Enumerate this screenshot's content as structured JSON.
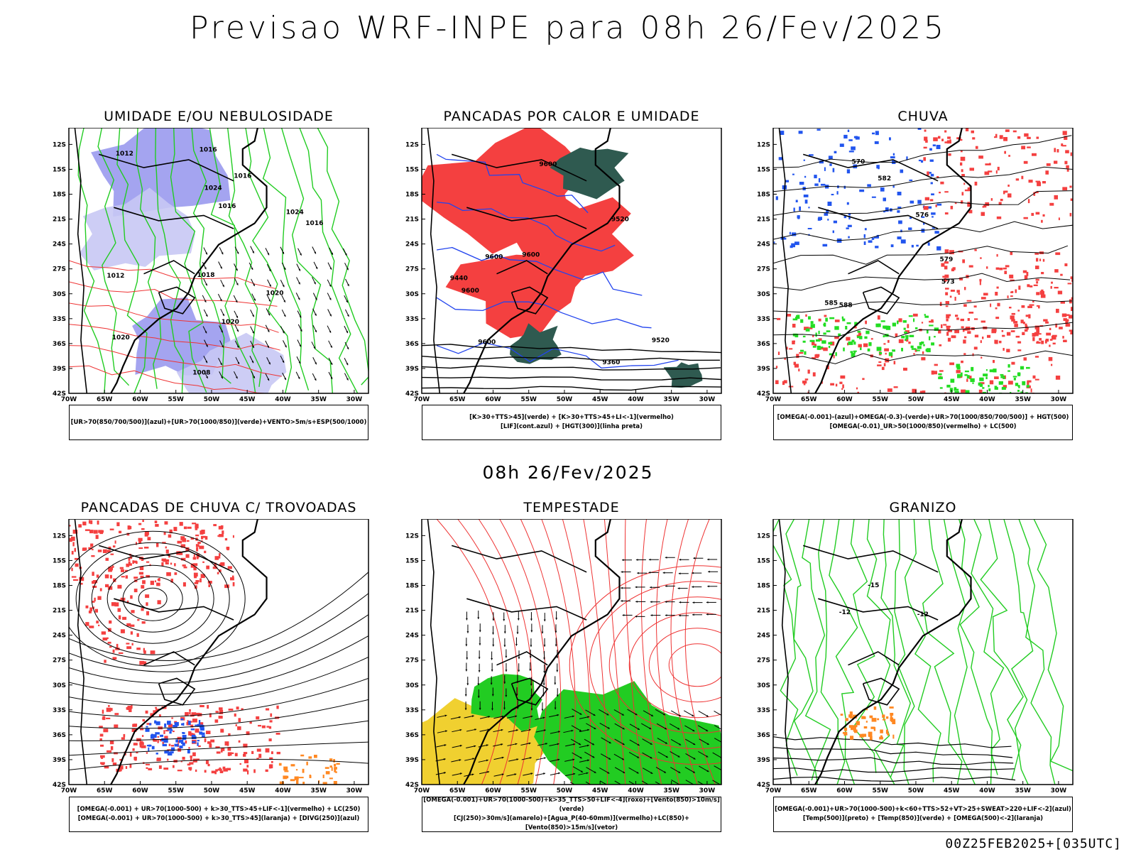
{
  "header": {
    "title": "Previsao WRF-INPE  para 08h 26/Fev/2025"
  },
  "middle": {
    "title": "08h 26/Fev/2025"
  },
  "footer": {
    "run_label": "00Z25FEB2025+[035UTC]"
  },
  "chart_data": {
    "type": "map",
    "x_ticks": [
      "70W",
      "65W",
      "60W",
      "55W",
      "50W",
      "45W",
      "40W",
      "35W",
      "30W"
    ],
    "y_ticks": [
      "12S",
      "15S",
      "18S",
      "21S",
      "24S",
      "27S",
      "30S",
      "33S",
      "36S",
      "39S",
      "42S"
    ],
    "lon_range": [
      -70,
      -28
    ],
    "lat_range": [
      -10,
      -42
    ],
    "panels": [
      {
        "id": "umidade",
        "title": "UMIDADE E/OU NEBULOSIDADE",
        "legend": [
          "[UR>70(850/700/500)](azul)+[UR>70(1000/850)](verde)+VENTO>5m/s+ESP(500/1000)"
        ],
        "colors": {
          "fill_a": "#9a9aee",
          "fill_b": "#c8c8f4",
          "line_a": "#22cc22",
          "line_b": "#ee3333",
          "line_c": "#000000"
        },
        "contour_labels": [
          "1012",
          "1016",
          "1016",
          "1020",
          "1016",
          "1018",
          "1020",
          "1024",
          "1008",
          "1012",
          "1016",
          "1020",
          "1024"
        ]
      },
      {
        "id": "pancadas_calor",
        "title": "PANCADAS POR CALOR E UMIDADE",
        "legend": [
          "[K>30+TTS>45](verde) + [K>30+TTS>45+LI<-1](vermelho)",
          "[LIF](cont.azul) + [HGT(300)](linha preta)"
        ],
        "colors": {
          "fill_a": "#f44040",
          "fill_b": "#2f5a50",
          "line_a": "#2244ee",
          "line_b": "#000000"
        },
        "contour_labels": [
          "9600",
          "9600",
          "9600",
          "9600",
          "9520",
          "9440",
          "9360",
          "9600",
          "9520"
        ]
      },
      {
        "id": "chuva",
        "title": "CHUVA",
        "legend": [
          "[OMEGA(-0.001)-(azul)+OMEGA(-0.3)-(verde)+UR>70(1000/850/700/500)] + HGT(500)",
          "[OMEGA(-0.01)_UR>50(1000/850)(vermelho) + LC(500)"
        ],
        "colors": {
          "fill_a": "#f44040",
          "fill_b": "#2255ee",
          "fill_c": "#22dd22",
          "line_a": "#000000"
        },
        "contour_labels": [
          "588",
          "585",
          "582",
          "579",
          "576",
          "573",
          "570"
        ]
      },
      {
        "id": "pancadas_trovoadas",
        "title": "PANCADAS DE CHUVA C/ TROVOADAS",
        "legend": [
          "[OMEGA(-0.001) + UR>70(1000-500) + k>30_TTS>45+LIF<-1](vermelho) + LC(250)",
          "[OMEGA(-0.001) + UR>70(1000-500) + k>30_TTS>45](laranja) + [DIVG(250)](azul)"
        ],
        "colors": {
          "fill_a": "#f44040",
          "fill_b": "#ff8822",
          "fill_c": "#2255ee",
          "line_a": "#000000"
        },
        "contour_labels": []
      },
      {
        "id": "tempestade",
        "title": "TEMPESTADE",
        "legend": [
          "[OMEGA(-0.001)+UR>70(1000-500)+k>35_TTS>50+LIF<-4](roxo)+[Vento(850)>10m/s](verde)",
          "[CJ(250)>30m/s](amarelo)+[Agua_P(40-60mm)](vermelho)+LC(850)+[Vento(850)>15m/s](vetor)"
        ],
        "colors": {
          "fill_a": "#22cc22",
          "fill_b": "#f0d030",
          "line_a": "#ee3333",
          "line_b": "#000000"
        },
        "contour_labels": []
      },
      {
        "id": "granizo",
        "title": "GRANIZO",
        "legend": [
          "[OMEGA(-0.001)+UR>70(1000-500)+k<60+TTS>52+VT>25+SWEAT>220+LIF<-2](azul)",
          "[Temp(500)](preto) + [Temp(850)](verde) + [OMEGA(500)<-2](laranja)"
        ],
        "colors": {
          "fill_a": "#ff8822",
          "line_a": "#22cc22",
          "line_b": "#000000"
        },
        "contour_labels": [
          "-15",
          "-12",
          "-12"
        ]
      }
    ]
  }
}
